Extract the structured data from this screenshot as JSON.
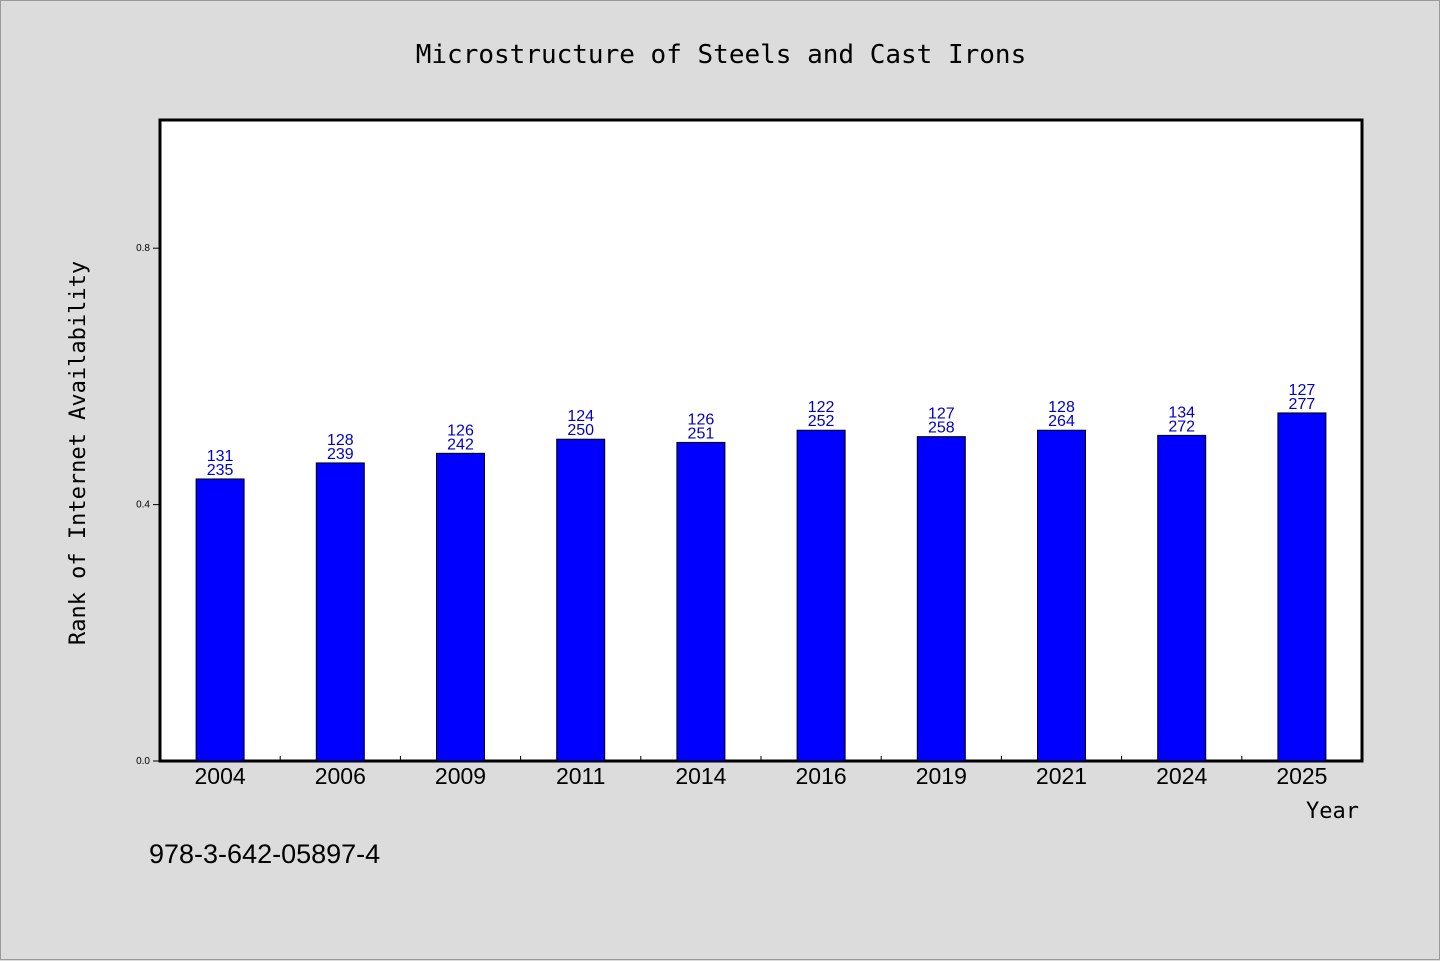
{
  "chart_data": {
    "type": "bar",
    "title": "Microstructure of Steels and Cast Irons",
    "xlabel": "Year",
    "ylabel": "Rank of Internet Availability",
    "categories": [
      "2004",
      "2006",
      "2009",
      "2011",
      "2014",
      "2016",
      "2019",
      "2021",
      "2024",
      "2025"
    ],
    "values": [
      0.44,
      0.465,
      0.48,
      0.502,
      0.497,
      0.516,
      0.506,
      0.516,
      0.508,
      0.543
    ],
    "label_top": [
      "131",
      "128",
      "126",
      "124",
      "126",
      "122",
      "127",
      "128",
      "134",
      "127"
    ],
    "label_bottom": [
      "235",
      "239",
      "242",
      "250",
      "251",
      "252",
      "258",
      "264",
      "272",
      "277"
    ],
    "ylim": [
      0,
      1.0
    ],
    "yticks": [
      "0.0",
      "0.4",
      "0.8"
    ],
    "grid": false,
    "bar_color": "#0000ff",
    "label_color": "#0000cc"
  },
  "footer_text": "978-3-642-05897-4"
}
